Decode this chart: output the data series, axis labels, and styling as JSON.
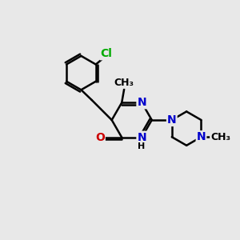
{
  "background_color": "#e8e8e8",
  "bond_color": "#000000",
  "bond_width": 1.8,
  "atom_colors": {
    "C": "#000000",
    "N": "#0000cc",
    "O": "#cc0000",
    "Cl": "#00aa00",
    "H": "#000000"
  },
  "font_size": 10,
  "label_bg": "#e8e8e8"
}
